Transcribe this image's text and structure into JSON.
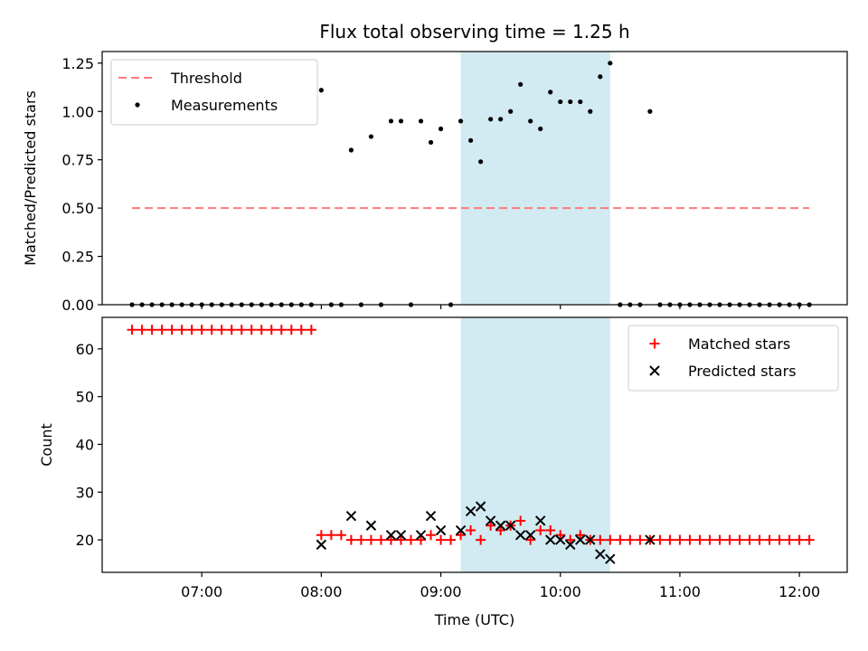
{
  "chart_data": [
    {
      "type": "scatter",
      "title": "Flux total observing time = 1.25 h",
      "xlabel": "",
      "ylabel": "Matched/Predicted stars",
      "ylim": [
        0,
        1.31
      ],
      "xlim": [
        "06:10",
        "12:24"
      ],
      "yticks": [
        0.0,
        0.25,
        0.5,
        0.75,
        1.0,
        1.25
      ],
      "ytick_labels": [
        "0.00",
        "0.25",
        "0.50",
        "0.75",
        "1.00",
        "1.25"
      ],
      "xticks": [
        "07:00",
        "08:00",
        "09:00",
        "10:00",
        "11:00",
        "12:00"
      ],
      "legend_position": "top-left",
      "highlight_span": {
        "from": "09:10",
        "to": "10:25",
        "color": "#add8e6"
      },
      "threshold": {
        "name": "Threshold",
        "value": 0.5,
        "from": "06:25",
        "to": "12:05",
        "color": "#ff7b7b",
        "style": "dashed"
      },
      "series": [
        {
          "name": "Measurements",
          "color": "#000000",
          "marker": "dot",
          "points": [
            [
              "06:25",
              0
            ],
            [
              "06:30",
              0
            ],
            [
              "06:35",
              0
            ],
            [
              "06:40",
              0
            ],
            [
              "06:45",
              0
            ],
            [
              "06:50",
              0
            ],
            [
              "06:55",
              0
            ],
            [
              "07:00",
              0
            ],
            [
              "07:05",
              0
            ],
            [
              "07:10",
              0
            ],
            [
              "07:15",
              0
            ],
            [
              "07:20",
              0
            ],
            [
              "07:25",
              0
            ],
            [
              "07:30",
              0
            ],
            [
              "07:35",
              0
            ],
            [
              "07:40",
              0
            ],
            [
              "07:45",
              0
            ],
            [
              "07:50",
              0
            ],
            [
              "07:55",
              0
            ],
            [
              "08:00",
              1.11
            ],
            [
              "08:05",
              0
            ],
            [
              "08:10",
              0
            ],
            [
              "08:15",
              0.8
            ],
            [
              "08:20",
              0
            ],
            [
              "08:25",
              0.87
            ],
            [
              "08:30",
              0
            ],
            [
              "08:35",
              0.95
            ],
            [
              "08:40",
              0.95
            ],
            [
              "08:45",
              0
            ],
            [
              "08:50",
              0.95
            ],
            [
              "08:55",
              0.84
            ],
            [
              "09:00",
              0.91
            ],
            [
              "09:05",
              0
            ],
            [
              "09:10",
              0.95
            ],
            [
              "09:15",
              0.85
            ],
            [
              "09:20",
              0.74
            ],
            [
              "09:25",
              0.96
            ],
            [
              "09:30",
              0.96
            ],
            [
              "09:35",
              1.0
            ],
            [
              "09:40",
              1.14
            ],
            [
              "09:45",
              0.95
            ],
            [
              "09:50",
              0.91
            ],
            [
              "09:55",
              1.1
            ],
            [
              "10:00",
              1.05
            ],
            [
              "10:05",
              1.05
            ],
            [
              "10:10",
              1.05
            ],
            [
              "10:15",
              1.0
            ],
            [
              "10:20",
              1.18
            ],
            [
              "10:25",
              1.25
            ],
            [
              "10:30",
              0
            ],
            [
              "10:35",
              0
            ],
            [
              "10:40",
              0
            ],
            [
              "10:45",
              1.0
            ],
            [
              "10:50",
              0
            ],
            [
              "10:55",
              0
            ],
            [
              "11:00",
              0
            ],
            [
              "11:05",
              0
            ],
            [
              "11:10",
              0
            ],
            [
              "11:15",
              0
            ],
            [
              "11:20",
              0
            ],
            [
              "11:25",
              0
            ],
            [
              "11:30",
              0
            ],
            [
              "11:35",
              0
            ],
            [
              "11:40",
              0
            ],
            [
              "11:45",
              0
            ],
            [
              "11:50",
              0
            ],
            [
              "11:55",
              0
            ],
            [
              "12:00",
              0
            ],
            [
              "12:05",
              0
            ]
          ]
        }
      ]
    },
    {
      "type": "scatter",
      "title": "",
      "xlabel": "Time (UTC)",
      "ylabel": "Count",
      "ylim": [
        13.2,
        66.6
      ],
      "xlim": [
        "06:10",
        "12:24"
      ],
      "yticks": [
        20,
        30,
        40,
        50,
        60
      ],
      "ytick_labels": [
        "20",
        "30",
        "40",
        "50",
        "60"
      ],
      "xticks": [
        "07:00",
        "08:00",
        "09:00",
        "10:00",
        "11:00",
        "12:00"
      ],
      "xtick_labels": [
        "07:00",
        "08:00",
        "09:00",
        "10:00",
        "11:00",
        "12:00"
      ],
      "legend_position": "top-right",
      "highlight_span": {
        "from": "09:10",
        "to": "10:25",
        "color": "#add8e6"
      },
      "series": [
        {
          "name": "Matched stars",
          "color": "#ff0000",
          "marker": "plus",
          "points": [
            [
              "06:25",
              64
            ],
            [
              "06:30",
              64
            ],
            [
              "06:35",
              64
            ],
            [
              "06:40",
              64
            ],
            [
              "06:45",
              64
            ],
            [
              "06:50",
              64
            ],
            [
              "06:55",
              64
            ],
            [
              "07:00",
              64
            ],
            [
              "07:05",
              64
            ],
            [
              "07:10",
              64
            ],
            [
              "07:15",
              64
            ],
            [
              "07:20",
              64
            ],
            [
              "07:25",
              64
            ],
            [
              "07:30",
              64
            ],
            [
              "07:35",
              64
            ],
            [
              "07:40",
              64
            ],
            [
              "07:45",
              64
            ],
            [
              "07:50",
              64
            ],
            [
              "07:55",
              64
            ],
            [
              "08:00",
              21
            ],
            [
              "08:05",
              21
            ],
            [
              "08:10",
              21
            ],
            [
              "08:15",
              20
            ],
            [
              "08:20",
              20
            ],
            [
              "08:25",
              20
            ],
            [
              "08:30",
              20
            ],
            [
              "08:35",
              20
            ],
            [
              "08:40",
              20
            ],
            [
              "08:45",
              20
            ],
            [
              "08:50",
              20
            ],
            [
              "08:55",
              21
            ],
            [
              "09:00",
              20
            ],
            [
              "09:05",
              20
            ],
            [
              "09:10",
              21
            ],
            [
              "09:15",
              22
            ],
            [
              "09:20",
              20
            ],
            [
              "09:25",
              23
            ],
            [
              "09:30",
              22
            ],
            [
              "09:35",
              23
            ],
            [
              "09:40",
              24
            ],
            [
              "09:45",
              20
            ],
            [
              "09:50",
              22
            ],
            [
              "09:55",
              22
            ],
            [
              "10:00",
              21
            ],
            [
              "10:05",
              20
            ],
            [
              "10:10",
              21
            ],
            [
              "10:15",
              20
            ],
            [
              "10:20",
              20
            ],
            [
              "10:25",
              20
            ],
            [
              "10:30",
              20
            ],
            [
              "10:35",
              20
            ],
            [
              "10:40",
              20
            ],
            [
              "10:45",
              20
            ],
            [
              "10:50",
              20
            ],
            [
              "10:55",
              20
            ],
            [
              "11:00",
              20
            ],
            [
              "11:05",
              20
            ],
            [
              "11:10",
              20
            ],
            [
              "11:15",
              20
            ],
            [
              "11:20",
              20
            ],
            [
              "11:25",
              20
            ],
            [
              "11:30",
              20
            ],
            [
              "11:35",
              20
            ],
            [
              "11:40",
              20
            ],
            [
              "11:45",
              20
            ],
            [
              "11:50",
              20
            ],
            [
              "11:55",
              20
            ],
            [
              "12:00",
              20
            ],
            [
              "12:05",
              20
            ]
          ]
        },
        {
          "name": "Predicted stars",
          "color": "#000000",
          "marker": "x",
          "points": [
            [
              "08:00",
              19
            ],
            [
              "08:15",
              25
            ],
            [
              "08:25",
              23
            ],
            [
              "08:35",
              21
            ],
            [
              "08:40",
              21
            ],
            [
              "08:50",
              21
            ],
            [
              "08:55",
              25
            ],
            [
              "09:00",
              22
            ],
            [
              "09:10",
              22
            ],
            [
              "09:15",
              26
            ],
            [
              "09:20",
              27
            ],
            [
              "09:25",
              24
            ],
            [
              "09:30",
              23
            ],
            [
              "09:35",
              23
            ],
            [
              "09:40",
              21
            ],
            [
              "09:45",
              21
            ],
            [
              "09:50",
              24
            ],
            [
              "09:55",
              20
            ],
            [
              "10:00",
              20
            ],
            [
              "10:05",
              19
            ],
            [
              "10:10",
              20
            ],
            [
              "10:15",
              20
            ],
            [
              "10:20",
              17
            ],
            [
              "10:25",
              16
            ],
            [
              "10:45",
              20
            ]
          ]
        }
      ]
    }
  ]
}
